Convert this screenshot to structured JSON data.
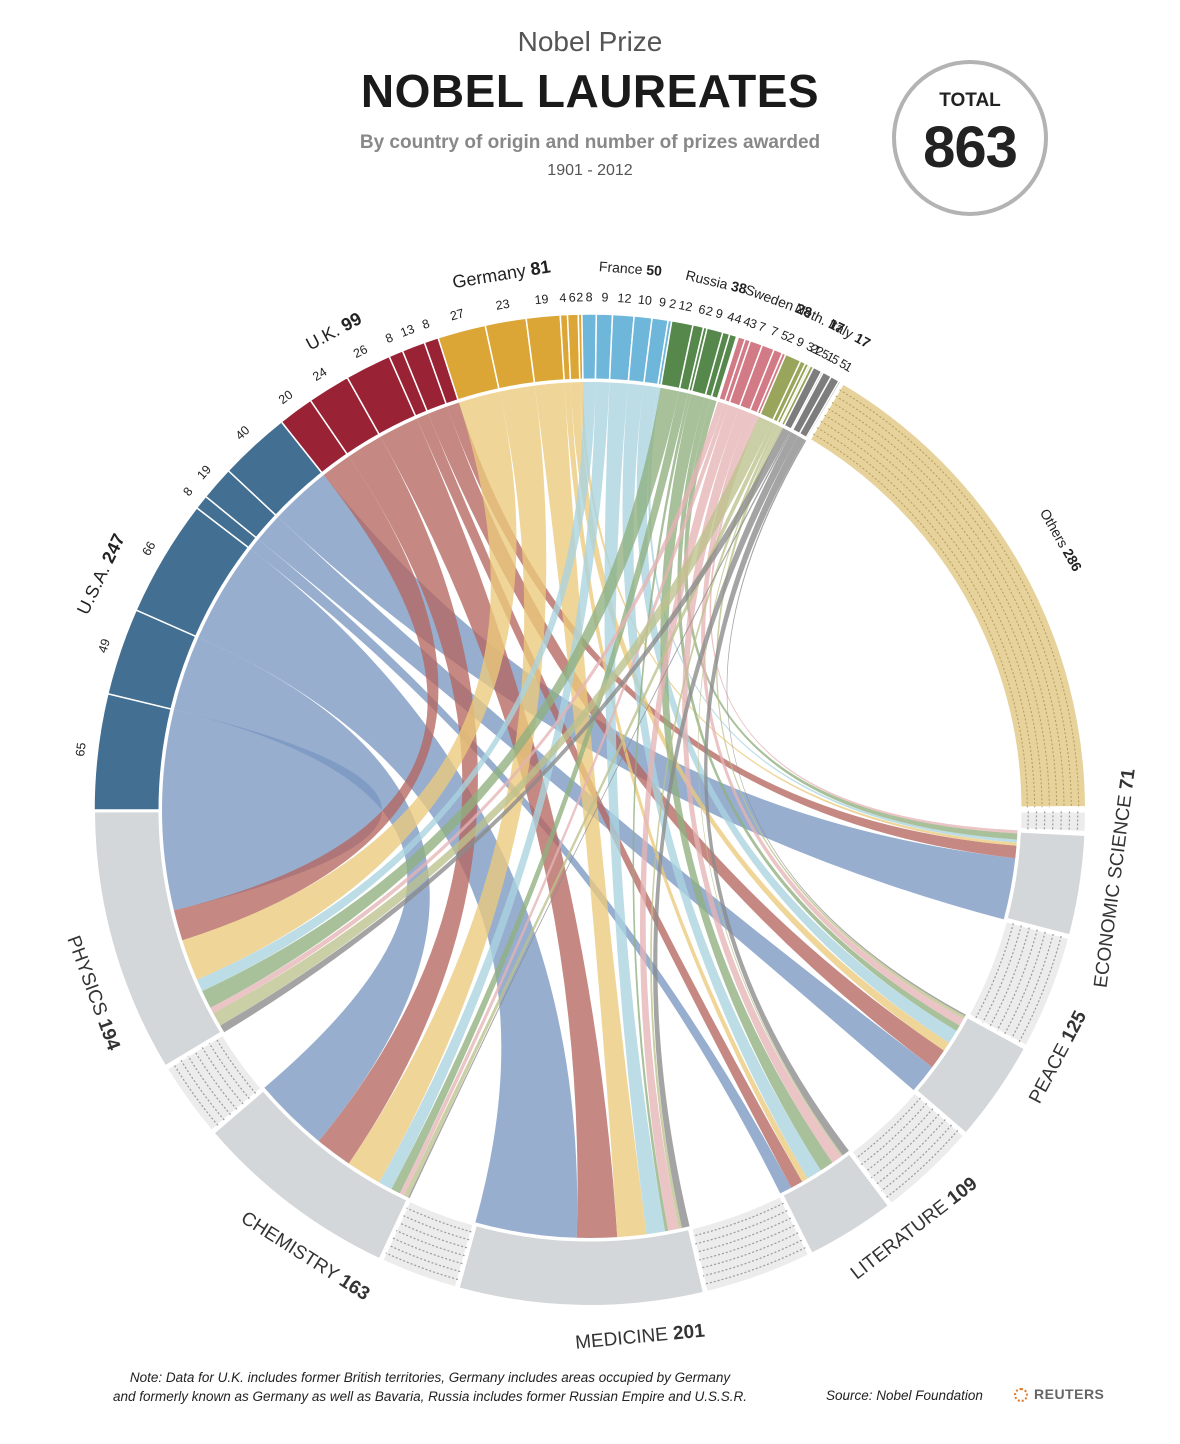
{
  "header": {
    "supertitle": "Nobel Prize",
    "title": "NOBEL LAUREATES",
    "subtitle": "By country of origin and number of prizes awarded",
    "years": "1901 - 2012",
    "total_label": "TOTAL",
    "total_value": "863"
  },
  "chart_data": {
    "type": "chord",
    "title": "NOBEL LAUREATES",
    "categories": [
      "Physics",
      "Chemistry",
      "Medicine",
      "Literature",
      "Peace",
      "Economic Science"
    ],
    "countries": [
      {
        "name": "U.S.A.",
        "total": 247,
        "values": [
          65,
          49,
          66,
          8,
          19,
          40
        ],
        "color": "#436f93",
        "ribbon": "#7a97c2"
      },
      {
        "name": "U.K.",
        "total": 99,
        "values": [
          20,
          24,
          26,
          8,
          13,
          8
        ],
        "color": "#9a2235",
        "ribbon": "#b5675f"
      },
      {
        "name": "Germany",
        "total": 81,
        "values": [
          27,
          23,
          19,
          4,
          6,
          2
        ],
        "color": "#dca637",
        "ribbon": "#ecc97c"
      },
      {
        "name": "France",
        "total": 50,
        "values": [
          8,
          9,
          12,
          10,
          9,
          2
        ],
        "color": "#6eb6da",
        "ribbon": "#a9d3df"
      },
      {
        "name": "Russia",
        "total": 38,
        "values": [
          12,
          6,
          2,
          9,
          4,
          4
        ],
        "color": "#56884c",
        "ribbon": "#8fb07f"
      },
      {
        "name": "Sweden",
        "total": 28,
        "values": [
          4,
          3,
          7,
          7,
          5,
          2
        ],
        "color": "#d27a86",
        "ribbon": "#e6b3b5"
      },
      {
        "name": "Neth.",
        "total": 17,
        "values": [
          9,
          3,
          2,
          1,
          2,
          0
        ],
        "color": "#99a55a",
        "ribbon": "#bdc28c"
      },
      {
        "name": "Italy",
        "total": 17,
        "values": [
          5,
          1,
          5,
          5,
          1,
          0
        ],
        "color": "#7d7d7d",
        "ribbon": "#8a8a8a"
      },
      {
        "name": "Others",
        "total": 286,
        "values": [],
        "color": "#e6d29a",
        "ribbon": "#e6d29a"
      }
    ],
    "prizes": [
      {
        "name": "PHYSICS",
        "total": 194
      },
      {
        "name": "CHEMISTRY",
        "total": 163
      },
      {
        "name": "MEDICINE",
        "total": 201
      },
      {
        "name": "LITERATURE",
        "total": 109
      },
      {
        "name": "PEACE",
        "total": 125
      },
      {
        "name": "ECONOMIC SCIENCE",
        "total": 71
      }
    ],
    "total": 863
  },
  "labels": {
    "countries": [
      {
        "name": "U.S.A.",
        "value": "247"
      },
      {
        "name": "U.K.",
        "value": "99"
      },
      {
        "name": "Germany",
        "value": "81"
      },
      {
        "name": "France",
        "value": "50"
      },
      {
        "name": "Russia",
        "value": "38"
      },
      {
        "name": "Sweden",
        "value": "28"
      },
      {
        "name": "Neth.",
        "value": "17"
      },
      {
        "name": "Italy",
        "value": "17"
      },
      {
        "name": "Others",
        "value": "286"
      }
    ],
    "prizes": [
      {
        "name": "PHYSICS",
        "value": "194"
      },
      {
        "name": "CHEMISTRY",
        "value": "163"
      },
      {
        "name": "MEDICINE",
        "value": "201"
      },
      {
        "name": "LITERATURE",
        "value": "109"
      },
      {
        "name": "PEACE",
        "value": "125"
      },
      {
        "name": "ECONOMIC",
        "name2": "SCIENCE",
        "value": "71"
      }
    ]
  },
  "footer": {
    "note_line1": "Note: Data for U.K. includes former British territories, Germany includes areas occupied by Germany",
    "note_line2": "and formerly known as Germany as well as Bavaria, Russia includes former Russian Empire and U.S.S.R.",
    "source": "Source: Nobel Foundation",
    "logo": "REUTERS"
  },
  "colors": {
    "prize_arc": "#d3d7da",
    "others_hatch": "#9a9a9a",
    "total_ring": "#b3b3b3"
  }
}
